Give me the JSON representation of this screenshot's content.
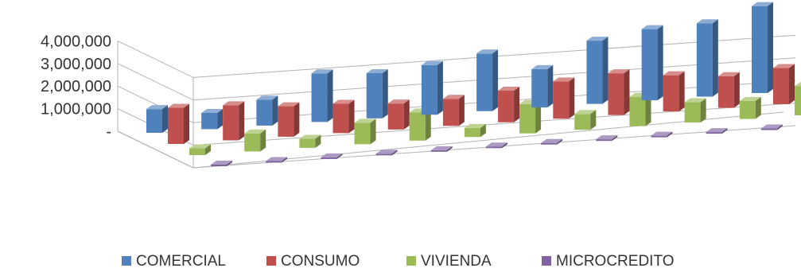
{
  "chart_data": {
    "type": "bar",
    "subtype": "3d-clustered-column",
    "title": "",
    "xlabel": "",
    "ylabel": "",
    "ylim": [
      0,
      4000000
    ],
    "y_ticks": [
      {
        "value": 0,
        "label": "-"
      },
      {
        "value": 1000000,
        "label": "1,000,000"
      },
      {
        "value": 2000000,
        "label": "2,000,000"
      },
      {
        "value": 3000000,
        "label": "3,000,000"
      },
      {
        "value": 4000000,
        "label": "4,000,000"
      }
    ],
    "grid": true,
    "legend_position": "bottom",
    "category_count": 12,
    "series": [
      {
        "name": "COMERCIAL",
        "color": "#4F81BD",
        "values": [
          1050000,
          720000,
          1150000,
          2150000,
          2000000,
          2200000,
          2550000,
          1700000,
          2800000,
          3150000,
          3250000,
          3850000
        ]
      },
      {
        "name": "CONSUMO",
        "color": "#C0504D",
        "values": [
          1600000,
          1550000,
          1350000,
          1300000,
          1150000,
          1200000,
          1400000,
          1650000,
          1850000,
          1600000,
          1400000,
          1600000
        ]
      },
      {
        "name": "VIVIENDA",
        "color": "#9BBB59",
        "values": [
          300000,
          800000,
          400000,
          950000,
          1250000,
          400000,
          1300000,
          700000,
          1300000,
          900000,
          800000,
          1300000
        ]
      },
      {
        "name": "MICROCREDITO",
        "color": "#8064A2",
        "values": [
          0,
          0,
          0,
          0,
          0,
          0,
          0,
          0,
          0,
          0,
          0,
          0
        ]
      }
    ]
  }
}
